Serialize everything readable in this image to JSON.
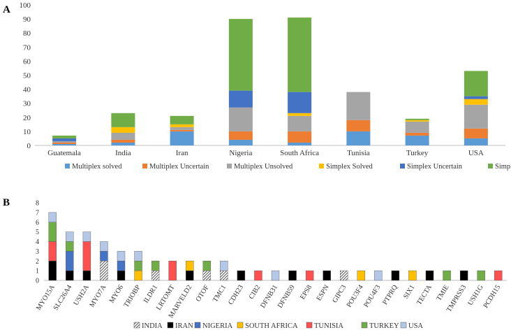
{
  "chart_data": [
    {
      "panel_label": "A",
      "type": "bar",
      "stacked": true,
      "categories": [
        "Guatemala",
        "India",
        "Iran",
        "Nigeria",
        "South Africa",
        "Tunisia",
        "Turkey",
        "USA"
      ],
      "ylim": [
        0,
        100
      ],
      "yticks": [
        0,
        10,
        20,
        30,
        40,
        50,
        60,
        70,
        80,
        90,
        100
      ],
      "legend_position": "bottom",
      "series": [
        {
          "name": "Multiplex solved",
          "color": "#5b9bd5",
          "values": [
            1,
            2,
            10,
            4,
            2,
            10,
            7,
            5
          ]
        },
        {
          "name": "Multiplex Uncertain",
          "color": "#ed7d31",
          "values": [
            1,
            2,
            1,
            6,
            8,
            8,
            2,
            7
          ]
        },
        {
          "name": "Multiplex Unsolved",
          "color": "#a5a5a5",
          "values": [
            1,
            5,
            2,
            17,
            11,
            20,
            8,
            17
          ]
        },
        {
          "name": "Simplex Solved",
          "color": "#ffc000",
          "values": [
            0,
            4,
            2,
            0,
            2,
            0,
            1,
            4
          ]
        },
        {
          "name": "Simplex Uncertain",
          "color": "#4472c4",
          "values": [
            2,
            0,
            0,
            12,
            15,
            0,
            0,
            2
          ]
        },
        {
          "name": "Simplex Unsolved",
          "color": "#70ad47",
          "values": [
            2,
            10,
            6,
            51,
            53,
            0,
            1,
            18
          ]
        }
      ]
    },
    {
      "panel_label": "B",
      "type": "bar",
      "stacked": true,
      "categories": [
        "MYO15A",
        "SLC26A4",
        "USH2A",
        "MYO7A",
        "MYO6",
        "TRIOBP",
        "ILDR1",
        "LRTOMT",
        "MARVELD2",
        "OTOF",
        "TMC1",
        "CDH23",
        "CIB2",
        "DFNB31",
        "DFNB59",
        "EPS8",
        "ESPN",
        "GIPC3",
        "POU3F4",
        "POU4F3",
        "PTPRQ",
        "SIX1",
        "TECTA",
        "TMIE",
        "TMPRSS3",
        "USH1G",
        "PCDH15"
      ],
      "ylim": [
        0,
        8
      ],
      "yticks": [
        0,
        1,
        2,
        3,
        4,
        5,
        6,
        7,
        8
      ],
      "legend_position": "bottom",
      "series": [
        {
          "name": "INDIA",
          "color": "#ffffff",
          "pattern": "hatch",
          "values": [
            0,
            0,
            0,
            2,
            0,
            0,
            1,
            0,
            0,
            1,
            1,
            0,
            0,
            0,
            0,
            0,
            0,
            1,
            0,
            0,
            0,
            0,
            0,
            0,
            0,
            0,
            0
          ]
        },
        {
          "name": "IRAN",
          "color": "#000000",
          "values": [
            2,
            1,
            1,
            0,
            1,
            0,
            0,
            0,
            1,
            0,
            0,
            1,
            0,
            0,
            1,
            0,
            1,
            0,
            0,
            0,
            1,
            0,
            1,
            0,
            1,
            0,
            0
          ]
        },
        {
          "name": "NIGERIA",
          "color": "#4472c4",
          "values": [
            0,
            2,
            0,
            1,
            1,
            0,
            0,
            0,
            0,
            0,
            0,
            0,
            0,
            0,
            0,
            0,
            0,
            0,
            0,
            0,
            0,
            0,
            0,
            0,
            0,
            0,
            0
          ]
        },
        {
          "name": "SOUTH AFRICA",
          "color": "#ffc000",
          "values": [
            0,
            0,
            0,
            0,
            0,
            1,
            0,
            0,
            1,
            0,
            0,
            0,
            0,
            0,
            0,
            0,
            0,
            0,
            1,
            0,
            0,
            1,
            0,
            0,
            0,
            0,
            0
          ]
        },
        {
          "name": "TUNISIA",
          "color": "#ff5050",
          "values": [
            2,
            0,
            3,
            0,
            0,
            0,
            0,
            2,
            0,
            0,
            0,
            0,
            1,
            0,
            0,
            1,
            0,
            0,
            0,
            0,
            0,
            0,
            0,
            0,
            0,
            0,
            1
          ]
        },
        {
          "name": "TURKEY",
          "color": "#70ad47",
          "values": [
            2,
            1,
            0,
            0,
            0,
            1,
            1,
            0,
            0,
            1,
            0,
            0,
            0,
            0,
            0,
            0,
            0,
            0,
            0,
            0,
            0,
            0,
            0,
            1,
            0,
            1,
            0
          ]
        },
        {
          "name": "USA",
          "color": "#b4c7e7",
          "values": [
            1,
            1,
            1,
            1,
            1,
            1,
            0,
            0,
            0,
            0,
            1,
            0,
            0,
            1,
            0,
            0,
            0,
            0,
            0,
            1,
            0,
            0,
            0,
            0,
            0,
            0,
            0
          ]
        }
      ]
    }
  ]
}
